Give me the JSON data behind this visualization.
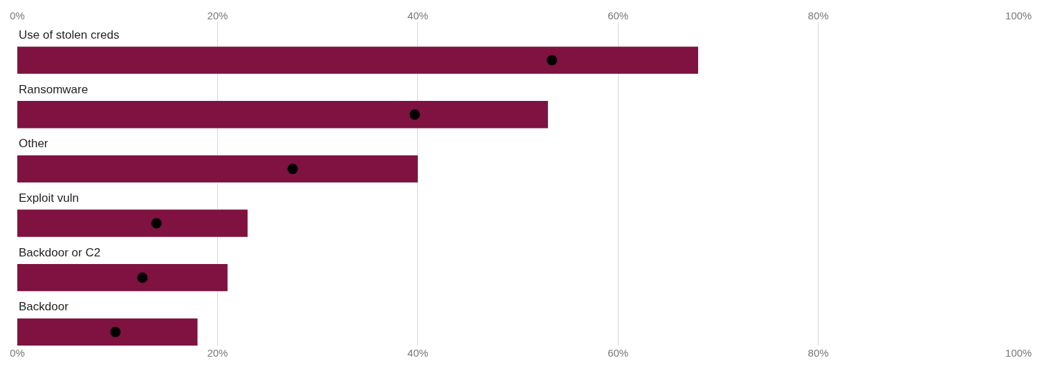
{
  "chart_data": {
    "type": "scatter",
    "categories": [
      "Use of stolen creds",
      "Ransomware",
      "Other",
      "Exploit vuln",
      "Backdoor or C2",
      "Backdoor"
    ],
    "orientation": "horizontal",
    "series": [
      {
        "type": "bar",
        "color": "#7f1240",
        "values": [
          68,
          53,
          40,
          23,
          21,
          18
        ]
      },
      {
        "color": "#000000",
        "values": [
          53.4,
          39.7,
          27.5,
          13.9,
          12.5,
          9.8
        ]
      }
    ],
    "xlim": [
      0,
      100
    ],
    "xticks": [
      {
        "value": 0,
        "label": "0%"
      },
      {
        "value": 20,
        "label": "20%"
      },
      {
        "value": 40,
        "label": "40%"
      },
      {
        "value": 60,
        "label": "60%"
      },
      {
        "value": 80,
        "label": "80%"
      },
      {
        "value": 100,
        "label": "100%"
      }
    ],
    "x2lim": [
      0,
      100
    ],
    "x2ticks": [
      {
        "value": 0,
        "label": "0%"
      },
      {
        "value": 20,
        "label": "20%"
      },
      {
        "value": 40,
        "label": "40%"
      },
      {
        "value": 60,
        "label": "60%"
      },
      {
        "value": 80,
        "label": "80%"
      },
      {
        "value": 100,
        "label": "100%"
      }
    ],
    "grid": "x",
    "marker": "circle"
  }
}
